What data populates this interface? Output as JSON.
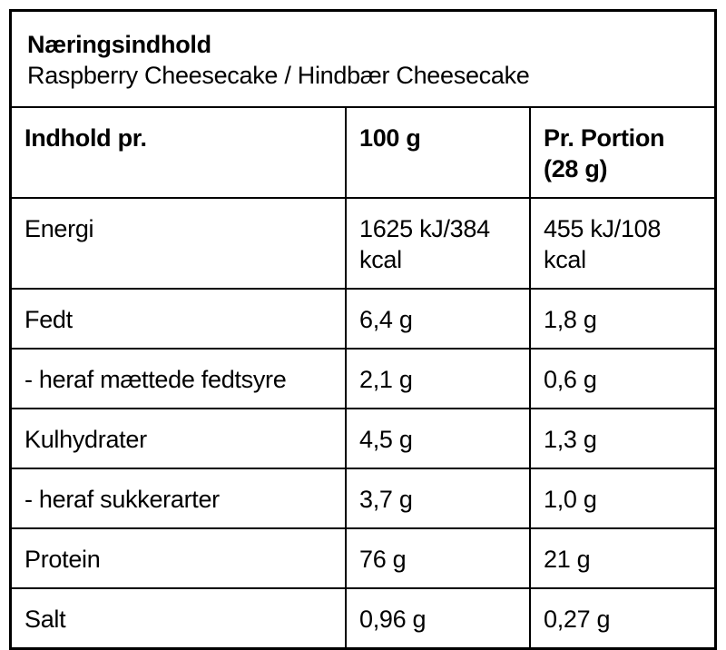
{
  "header": {
    "title": "Næringsindhold",
    "subtitle": "Raspberry Cheesecake / Hindbær Cheesecake"
  },
  "table": {
    "columns": [
      "Indhold pr.",
      "100 g",
      "Pr. Portion (28 g)"
    ],
    "rows": [
      {
        "label": "Energi",
        "per_100g": "1625 kJ/384 kcal",
        "per_portion": "455 kJ/108 kcal"
      },
      {
        "label": "Fedt",
        "per_100g": "6,4 g",
        "per_portion": "1,8 g"
      },
      {
        "label": "- heraf mættede fedtsyre",
        "per_100g": "2,1 g",
        "per_portion": "0,6 g"
      },
      {
        "label": "Kulhydrater",
        "per_100g": "4,5 g",
        "per_portion": "1,3 g"
      },
      {
        "label": "- heraf sukkerarter",
        "per_100g": "3,7 g",
        "per_portion": "1,0 g"
      },
      {
        "label": "Protein",
        "per_100g": "76 g",
        "per_portion": "21 g"
      },
      {
        "label": "Salt",
        "per_100g": "0,96 g",
        "per_portion": "0,27 g"
      }
    ]
  },
  "colors": {
    "background": "#ffffff",
    "border": "#000000",
    "text": "#000000"
  }
}
